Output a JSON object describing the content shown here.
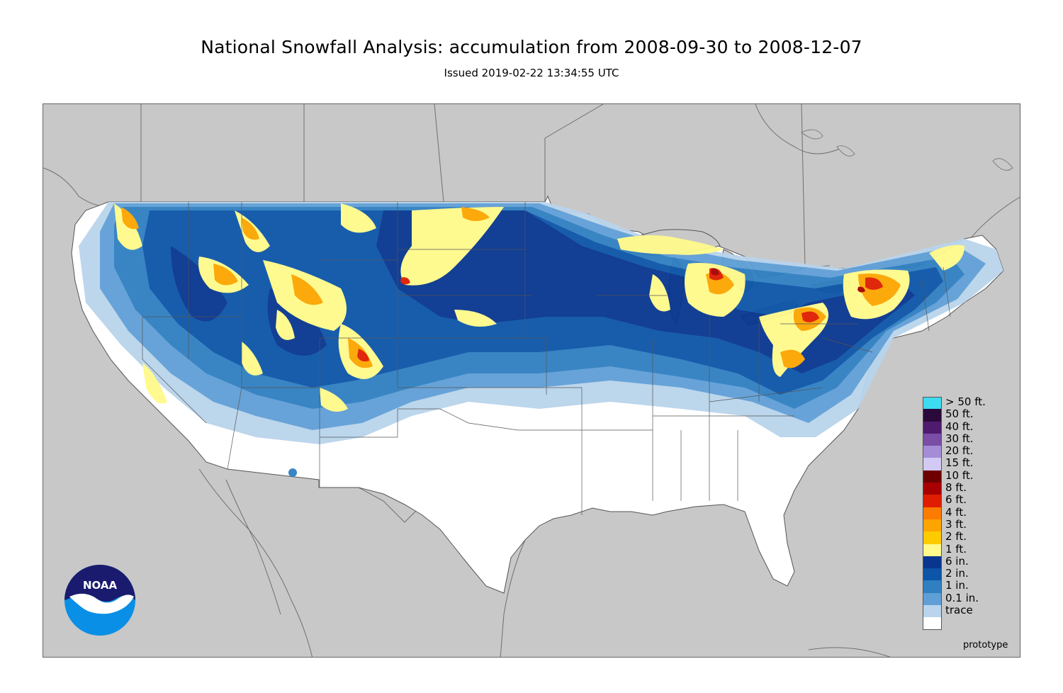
{
  "header": {
    "title": "National Snowfall Analysis: accumulation from 2008-09-30 to 2008-12-07",
    "subtitle": "Issued 2019-02-22 13:34:55 UTC"
  },
  "map": {
    "region": "Contiguous United States",
    "background_color": "#c8c8c8",
    "land_color": "#ffffff"
  },
  "legend": {
    "items": [
      {
        "label": "> 50 ft.",
        "color": "#3ddcf0"
      },
      {
        "label": "50 ft.",
        "color": "#2a0a3a"
      },
      {
        "label": "40 ft.",
        "color": "#4f1b6e"
      },
      {
        "label": "30 ft.",
        "color": "#7a4ea6"
      },
      {
        "label": "20 ft.",
        "color": "#a48dd6"
      },
      {
        "label": "15 ft.",
        "color": "#d2caf4"
      },
      {
        "label": "10 ft.",
        "color": "#6e0000"
      },
      {
        "label": "8 ft.",
        "color": "#a80000"
      },
      {
        "label": "6 ft.",
        "color": "#df1d00"
      },
      {
        "label": "4 ft.",
        "color": "#fb7c00"
      },
      {
        "label": "3 ft.",
        "color": "#fca500"
      },
      {
        "label": "2 ft.",
        "color": "#fecb00"
      },
      {
        "label": "1 ft.",
        "color": "#fffa8b"
      },
      {
        "label": "6 in.",
        "color": "#07358f"
      },
      {
        "label": "2 in.",
        "color": "#0c55a8"
      },
      {
        "label": "1 in.",
        "color": "#2f7fc1"
      },
      {
        "label": "0.1 in.",
        "color": "#5f9fd6"
      },
      {
        "label": "trace",
        "color": "#b9d4ec"
      },
      {
        "label": "",
        "color": "#ffffff"
      }
    ]
  },
  "logo": {
    "text": "NOAA"
  },
  "watermark": "prototype"
}
